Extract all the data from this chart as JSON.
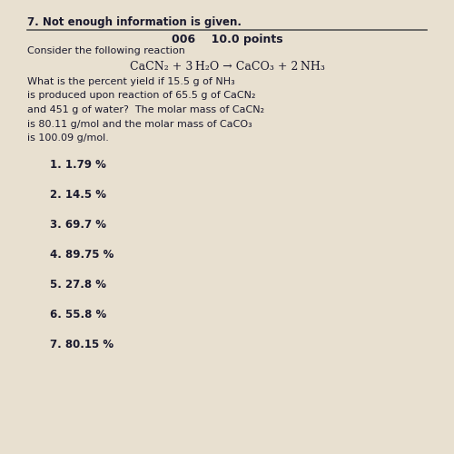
{
  "bg_color": "#e8e0d0",
  "text_color": "#1a1a2e",
  "header_item": "7. Not enough information is given.",
  "section_label": "006    10.0 points",
  "section_sublabel": "Consider the following reaction",
  "equation": "CaCN₂ + 3 H₂O → CaCO₃ + 2 NH₃",
  "body_lines": [
    "What is the percent yield if 15.5 g of NH₃",
    "is produced upon reaction of 65.5 g of CaCN₂",
    "and 451 g of water?  The molar mass of CaCN₂",
    "is 80.11 g/mol and the molar mass of CaCO₃",
    "is 100.09 g/mol."
  ],
  "choices": [
    "1. 1.79 %",
    "2. 14.5 %",
    "3. 69.7 %",
    "4. 89.75 %",
    "5. 27.8 %",
    "6. 55.8 %",
    "7. 80.15 %"
  ]
}
